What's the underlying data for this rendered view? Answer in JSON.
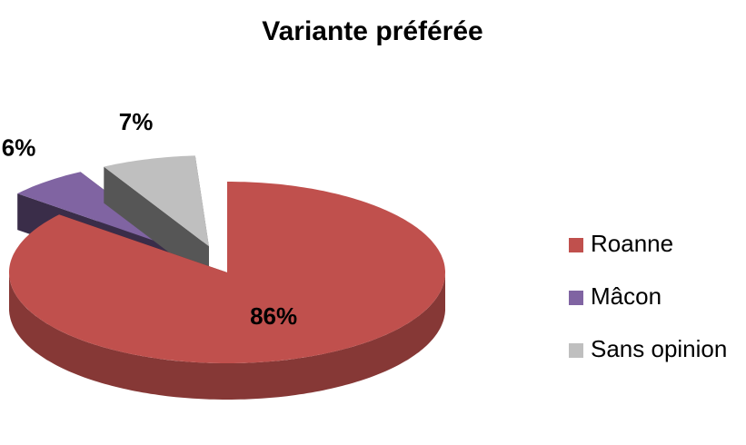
{
  "chart_data": {
    "type": "pie",
    "title": "Variante préférée",
    "categories": [
      "Roanne",
      "Mâcon",
      "Sans opinion"
    ],
    "values": [
      86,
      6,
      7
    ],
    "value_labels": [
      "86%",
      "6%",
      "7%"
    ],
    "colors": [
      "#c0504d",
      "#8064a2",
      "#bfbfbf"
    ],
    "legend": "right"
  }
}
